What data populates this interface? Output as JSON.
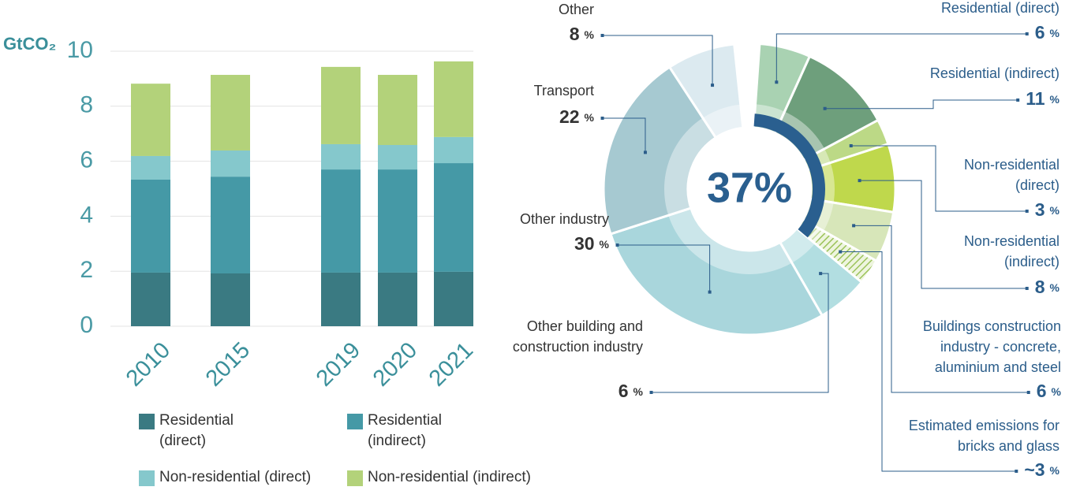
{
  "chart_data": [
    {
      "type": "bar",
      "stacked": true,
      "y_label": "GtCO₂",
      "categories": [
        "2010",
        "2015",
        "2019",
        "2020",
        "2021"
      ],
      "series": [
        {
          "name": "Residential (direct)",
          "color": "#3a7a82",
          "values": [
            1.95,
            1.92,
            1.95,
            1.95,
            1.98
          ]
        },
        {
          "name": "Residential (indirect)",
          "color": "#4599a6",
          "values": [
            3.38,
            3.52,
            3.75,
            3.75,
            3.95
          ]
        },
        {
          "name": "Non-residential (direct)",
          "color": "#85c8cc",
          "values": [
            0.86,
            0.95,
            0.92,
            0.89,
            0.95
          ]
        },
        {
          "name": "Non-residential (indirect)",
          "color": "#b3d27a",
          "values": [
            2.63,
            2.75,
            2.81,
            2.55,
            2.75
          ]
        }
      ],
      "ylim": [
        0,
        10
      ],
      "yticks": [
        0,
        2,
        4,
        6,
        8,
        10
      ],
      "grid": true
    },
    {
      "type": "donut",
      "center_label": "37%",
      "unit": "%",
      "categories": [
        "Residential (direct)",
        "Residential (indirect)",
        "Non-residential (direct)",
        "Non-residential (indirect)",
        "Buildings construction industry - concrete, aluminium and steel",
        "Estimated emissions for bricks and glass",
        "Other building and construction industry",
        "Other industry",
        "Transport",
        "Other"
      ],
      "values": [
        6,
        11,
        3,
        8,
        6,
        3,
        6,
        30,
        22,
        8
      ],
      "value_labels": [
        "6",
        "11",
        "3",
        "8",
        "6",
        "~3",
        "6",
        "30",
        "22",
        "8"
      ],
      "colors": [
        "#a9d2b2",
        "#6e9f7c",
        "#bcd986",
        "#bfd84c",
        "#d7e6b9",
        "#9cc35a",
        "#b2dee1",
        "#a9d6dc",
        "#a6c9d1",
        "#dceaf0"
      ]
    }
  ]
}
